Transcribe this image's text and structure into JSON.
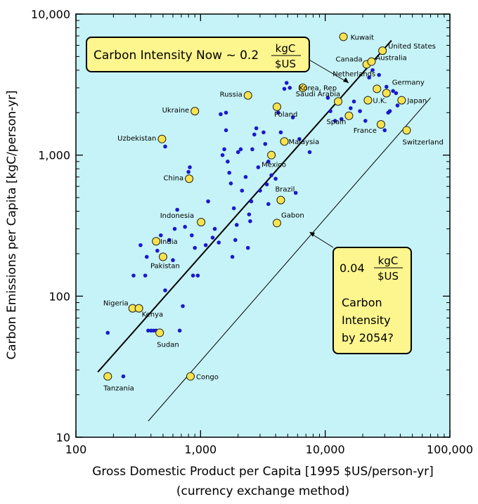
{
  "chart_data": {
    "type": "scatter",
    "xlabel": "Gross Domestic Product per Capita [1995 $US/person-yr]",
    "xlabel_sub": "(currency exchange method)",
    "ylabel": "Carbon Emissions per Capita [kgC/person-yr]",
    "x_scale": "log",
    "y_scale": "log",
    "xlim": [
      100,
      100000
    ],
    "ylim": [
      10,
      10000
    ],
    "x_ticks": [
      "100",
      "1,000",
      "10,000",
      "100,000"
    ],
    "y_ticks": [
      "10",
      "100",
      "1,000",
      "10,000"
    ],
    "background": "#c6f3f7",
    "labeled_point_color": "#f7e34d",
    "dot_color": "#1a1acc",
    "labeled_countries": [
      {
        "name": "Kuwait",
        "x": 14000,
        "y": 6900
      },
      {
        "name": "United States",
        "x": 28800,
        "y": 5500
      },
      {
        "name": "Canada",
        "x": 21500,
        "y": 4400
      },
      {
        "name": "Australia",
        "x": 23500,
        "y": 4600
      },
      {
        "name": "Russia",
        "x": 2400,
        "y": 2650
      },
      {
        "name": "Saudi Arabia",
        "x": 6600,
        "y": 3000
      },
      {
        "name": "Korea, Rep",
        "x": 12700,
        "y": 2400
      },
      {
        "name": "Netherlands",
        "x": 26000,
        "y": 2950
      },
      {
        "name": "Germany",
        "x": 31000,
        "y": 2750
      },
      {
        "name": "U.K.",
        "x": 22000,
        "y": 2450
      },
      {
        "name": "Japan",
        "x": 41000,
        "y": 2450
      },
      {
        "name": "Poland",
        "x": 4100,
        "y": 2200
      },
      {
        "name": "Spain",
        "x": 15500,
        "y": 1900
      },
      {
        "name": "France",
        "x": 28000,
        "y": 1650
      },
      {
        "name": "Switzerland",
        "x": 45000,
        "y": 1500
      },
      {
        "name": "Ukraine",
        "x": 900,
        "y": 2050
      },
      {
        "name": "Uzbekistan",
        "x": 490,
        "y": 1300
      },
      {
        "name": "Malaysia",
        "x": 4700,
        "y": 1250
      },
      {
        "name": "Mexico",
        "x": 3700,
        "y": 1000
      },
      {
        "name": "China",
        "x": 810,
        "y": 680
      },
      {
        "name": "Brazil",
        "x": 4400,
        "y": 480
      },
      {
        "name": "Indonesia",
        "x": 1010,
        "y": 335
      },
      {
        "name": "Gabon",
        "x": 4100,
        "y": 330
      },
      {
        "name": "India",
        "x": 440,
        "y": 245
      },
      {
        "name": "Pakistan",
        "x": 500,
        "y": 190
      },
      {
        "name": "Nigeria",
        "x": 285,
        "y": 82
      },
      {
        "name": "Kenya",
        "x": 320,
        "y": 82
      },
      {
        "name": "Sudan",
        "x": 470,
        "y": 55
      },
      {
        "name": "Tanzania",
        "x": 180,
        "y": 27
      },
      {
        "name": "Congo",
        "x": 830,
        "y": 27
      }
    ],
    "other_points": [
      [
        180,
        55
      ],
      [
        240,
        27
      ],
      [
        290,
        140
      ],
      [
        330,
        230
      ],
      [
        360,
        140
      ],
      [
        380,
        57
      ],
      [
        400,
        57
      ],
      [
        420,
        57
      ],
      [
        440,
        57
      ],
      [
        370,
        190
      ],
      [
        450,
        210
      ],
      [
        480,
        270
      ],
      [
        520,
        110
      ],
      [
        520,
        1150
      ],
      [
        560,
        250
      ],
      [
        600,
        180
      ],
      [
        620,
        300
      ],
      [
        650,
        410
      ],
      [
        680,
        57
      ],
      [
        720,
        85
      ],
      [
        750,
        310
      ],
      [
        800,
        760
      ],
      [
        820,
        820
      ],
      [
        850,
        270
      ],
      [
        870,
        140
      ],
      [
        900,
        220
      ],
      [
        950,
        140
      ],
      [
        1100,
        230
      ],
      [
        1150,
        470
      ],
      [
        1250,
        260
      ],
      [
        1300,
        300
      ],
      [
        1400,
        240
      ],
      [
        1450,
        1950
      ],
      [
        1500,
        1000
      ],
      [
        1550,
        1100
      ],
      [
        1600,
        2000
      ],
      [
        1600,
        1500
      ],
      [
        1650,
        900
      ],
      [
        1700,
        750
      ],
      [
        1750,
        630
      ],
      [
        1800,
        190
      ],
      [
        1850,
        420
      ],
      [
        1900,
        250
      ],
      [
        1950,
        320
      ],
      [
        2000,
        1050
      ],
      [
        2100,
        1100
      ],
      [
        2150,
        560
      ],
      [
        2300,
        700
      ],
      [
        2400,
        220
      ],
      [
        2450,
        380
      ],
      [
        2500,
        340
      ],
      [
        2550,
        470
      ],
      [
        2600,
        1100
      ],
      [
        2700,
        1400
      ],
      [
        2800,
        1550
      ],
      [
        2900,
        820
      ],
      [
        3000,
        560
      ],
      [
        3200,
        1450
      ],
      [
        3300,
        1200
      ],
      [
        3400,
        620
      ],
      [
        3500,
        450
      ],
      [
        3500,
        900
      ],
      [
        3700,
        720
      ],
      [
        4000,
        680
      ],
      [
        4200,
        2000
      ],
      [
        4400,
        1450
      ],
      [
        4700,
        2950
      ],
      [
        4900,
        3250
      ],
      [
        5200,
        3000
      ],
      [
        5500,
        1850
      ],
      [
        5800,
        540
      ],
      [
        6200,
        1300
      ],
      [
        7500,
        1050
      ],
      [
        10500,
        2550
      ],
      [
        11000,
        2050
      ],
      [
        12000,
        1750
      ],
      [
        13500,
        1800
      ],
      [
        16000,
        2150
      ],
      [
        17000,
        2400
      ],
      [
        19000,
        2050
      ],
      [
        21000,
        1750
      ],
      [
        22500,
        3550
      ],
      [
        24000,
        4000
      ],
      [
        27000,
        3700
      ],
      [
        30000,
        1500
      ],
      [
        31000,
        3050
      ],
      [
        32000,
        2000
      ],
      [
        33000,
        2050
      ],
      [
        35000,
        2850
      ],
      [
        37000,
        2750
      ],
      [
        38000,
        2250
      ]
    ],
    "fit_line_now": {
      "x": [
        150,
        34000
      ],
      "y": [
        29,
        6500
      ]
    },
    "fit_line_2054": {
      "x": [
        380,
        70000
      ],
      "y": [
        13,
        2550
      ]
    },
    "annotations": {
      "now": {
        "text": "Carbon Intensity Now ~ 0.2",
        "frac_num": "kgC",
        "frac_den": "$US"
      },
      "future": {
        "frac_lead": "0.04",
        "frac_num": "kgC",
        "frac_den": "$US",
        "lines": [
          "Carbon",
          "Intensity",
          "by 2054?"
        ]
      }
    }
  }
}
